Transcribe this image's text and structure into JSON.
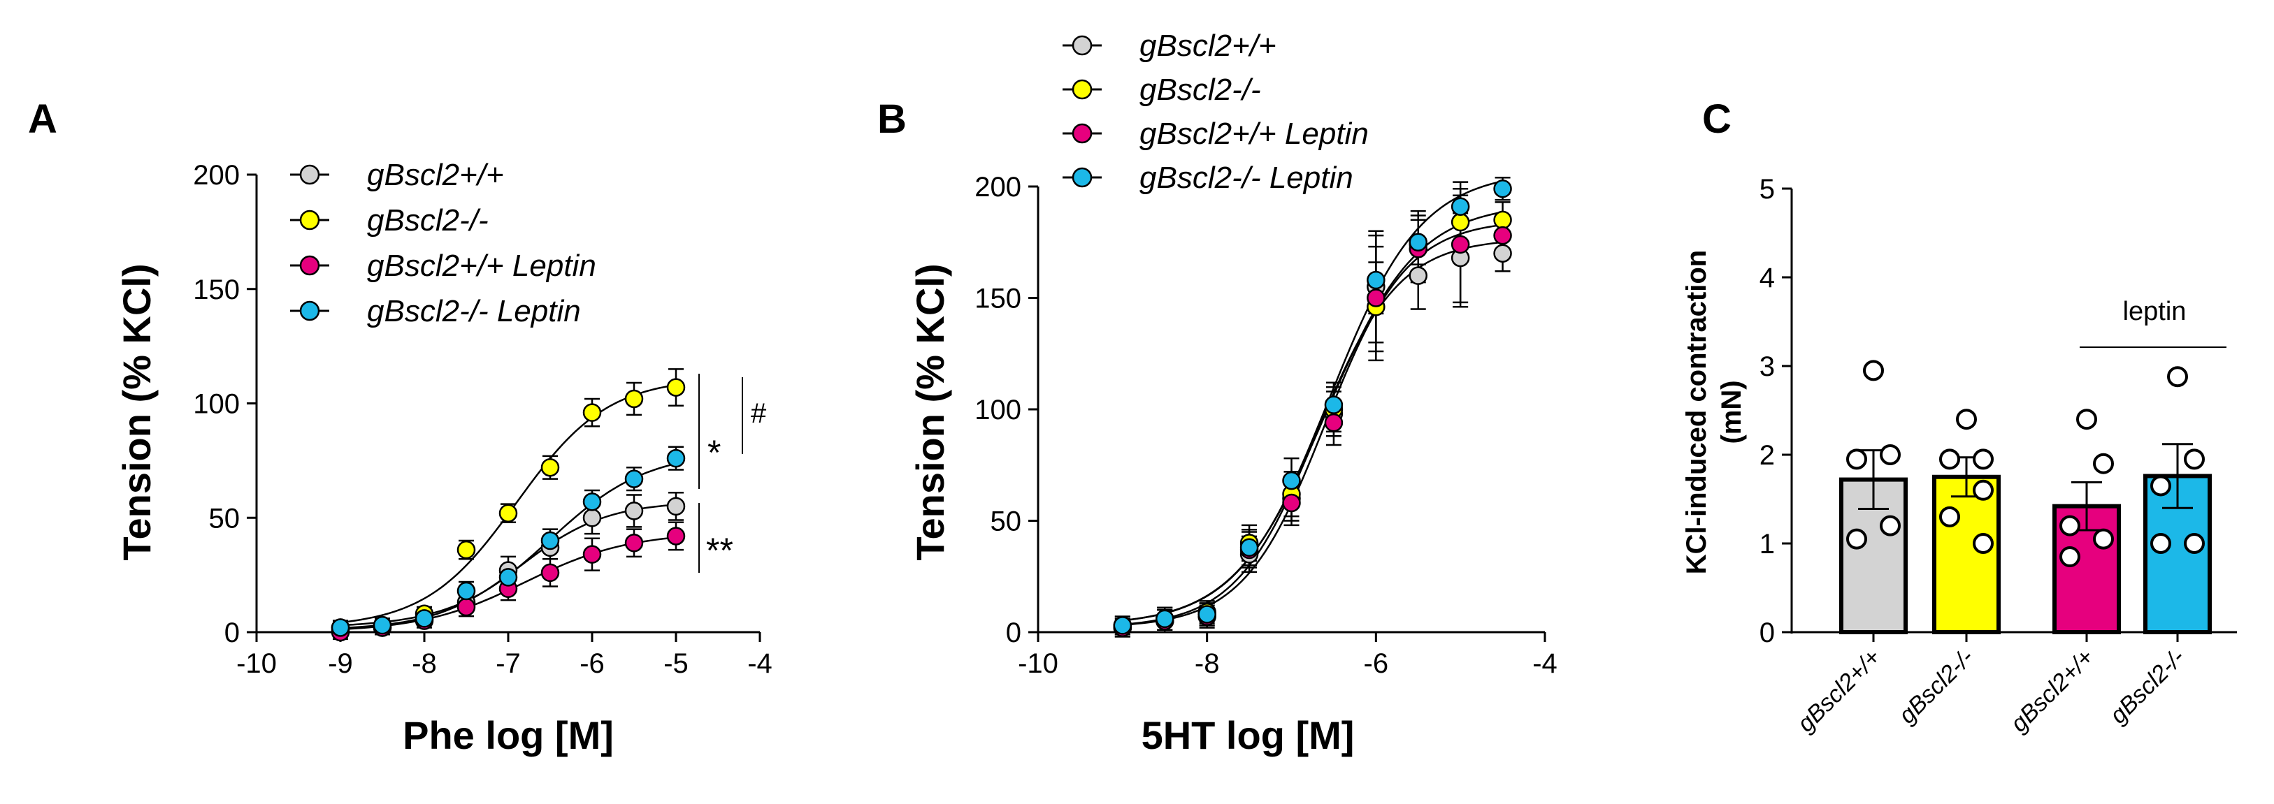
{
  "chart_data": [
    {
      "panel": "A",
      "type": "line",
      "xlabel": "Phe log [M]",
      "ylabel": "Tension (% KCl)",
      "xlim": [
        -10,
        -4
      ],
      "ylim": [
        0,
        200
      ],
      "xticks": [
        "-10",
        "-9",
        "-8",
        "-7",
        "-6",
        "-5",
        "-4"
      ],
      "yticks": [
        "0",
        "50",
        "100",
        "150",
        "200"
      ],
      "x": [
        -9,
        -8.5,
        -8,
        -7.5,
        -7,
        -6.5,
        -6,
        -5.5,
        -5
      ],
      "series": [
        {
          "name": "gBscl2+/+",
          "color": "#d3d3d3",
          "values": [
            1,
            2,
            6,
            13,
            27,
            37,
            50,
            53,
            55
          ],
          "errors": [
            3,
            3,
            3,
            4,
            6,
            5,
            7,
            7,
            6
          ]
        },
        {
          "name": "gBscl2-/-",
          "color": "#ffff00",
          "values": [
            2,
            3,
            8,
            36,
            52,
            72,
            96,
            102,
            107
          ],
          "errors": [
            3,
            3,
            3,
            4,
            4,
            5,
            6,
            7,
            8
          ]
        },
        {
          "name": "gBscl2+/+ Leptin",
          "color": "#e6007e",
          "values": [
            0,
            2,
            5,
            11,
            19,
            26,
            34,
            39,
            42
          ],
          "errors": [
            3,
            3,
            3,
            4,
            5,
            6,
            7,
            6,
            6
          ]
        },
        {
          "name": "gBscl2-/- Leptin",
          "color": "#1cb8e8",
          "values": [
            2,
            3,
            6,
            18,
            24,
            40,
            57,
            67,
            76
          ],
          "errors": [
            3,
            3,
            3,
            4,
            4,
            5,
            5,
            5,
            5
          ]
        }
      ],
      "annotations": [
        "*",
        "**",
        "#"
      ]
    },
    {
      "panel": "B",
      "type": "line",
      "xlabel": "5HT log [M]",
      "ylabel": "Tension (% KCl)",
      "xlim": [
        -10,
        -4
      ],
      "ylim": [
        0,
        200
      ],
      "xticks": [
        "-10",
        "-8",
        "-6",
        "-4"
      ],
      "yticks": [
        "0",
        "50",
        "100",
        "150",
        "200"
      ],
      "x": [
        -9,
        -8.5,
        -8,
        -7.5,
        -7,
        -6.5,
        -6,
        -5.5,
        -5,
        -4.5
      ],
      "series": [
        {
          "name": "gBscl2+/+",
          "color": "#d3d3d3",
          "values": [
            2,
            5,
            8,
            35,
            60,
            98,
            155,
            160,
            168,
            170
          ],
          "errors": [
            4,
            5,
            5,
            8,
            10,
            10,
            25,
            15,
            20,
            8
          ]
        },
        {
          "name": "gBscl2-/-",
          "color": "#ffff00",
          "values": [
            3,
            6,
            9,
            40,
            62,
            100,
            146,
            174,
            184,
            185
          ],
          "errors": [
            4,
            5,
            5,
            8,
            10,
            10,
            20,
            15,
            12,
            8
          ]
        },
        {
          "name": "gBscl2+/+ Leptin",
          "color": "#e6007e",
          "values": [
            2,
            5,
            7,
            37,
            58,
            94,
            150,
            172,
            174,
            178
          ],
          "errors": [
            4,
            5,
            5,
            8,
            10,
            10,
            28,
            15,
            28,
            8
          ]
        },
        {
          "name": "gBscl2-/- Leptin",
          "color": "#1cb8e8",
          "values": [
            3,
            6,
            8,
            38,
            68,
            102,
            158,
            175,
            191,
            199
          ],
          "errors": [
            4,
            5,
            5,
            8,
            10,
            10,
            15,
            10,
            8,
            5
          ]
        }
      ]
    },
    {
      "panel": "C",
      "type": "bar",
      "ylabel_line1": "KCl-induced contraction",
      "ylabel_line2": "(mN)",
      "ylim": [
        0,
        5
      ],
      "yticks": [
        "0",
        "1",
        "2",
        "3",
        "4",
        "5"
      ],
      "categories": [
        "gBscl2+/+",
        "gBscl2-/-",
        "gBscl2+/+",
        "gBscl2-/-"
      ],
      "values": [
        1.72,
        1.75,
        1.42,
        1.76
      ],
      "errors": [
        0.33,
        0.22,
        0.27,
        0.36
      ],
      "colors": [
        "#d3d3d3",
        "#ffff00",
        "#e6007e",
        "#1cb8e8"
      ],
      "points": [
        [
          2.95,
          2.0,
          1.95,
          1.2,
          1.05
        ],
        [
          2.4,
          1.95,
          1.95,
          1.6,
          1.3,
          1.0
        ],
        [
          2.4,
          1.9,
          1.2,
          1.05,
          0.85
        ],
        [
          2.88,
          1.95,
          1.65,
          1.0,
          1.0
        ]
      ],
      "group_label": "leptin"
    }
  ]
}
